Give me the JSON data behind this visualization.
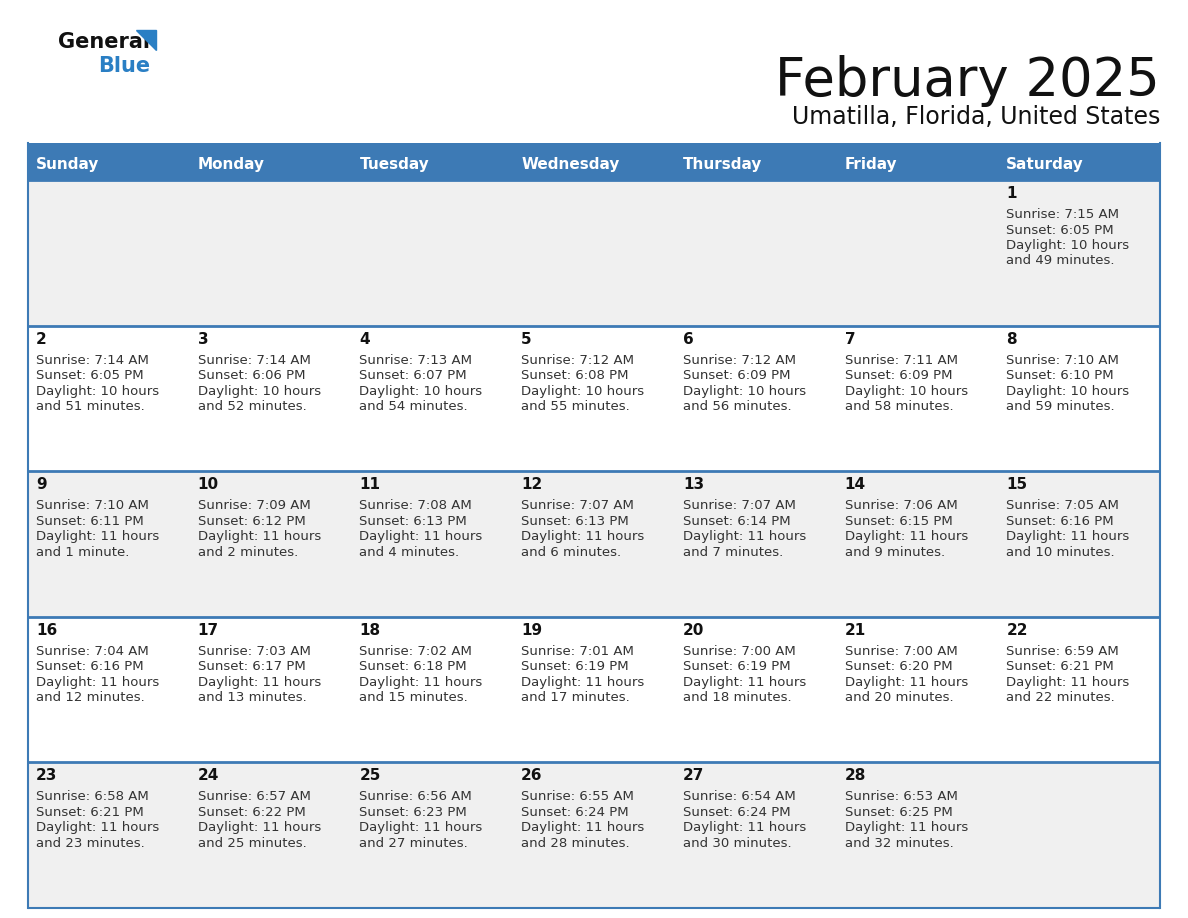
{
  "title": "February 2025",
  "subtitle": "Umatilla, Florida, United States",
  "header_bg_color": "#3d7ab5",
  "header_text_color": "#ffffff",
  "row_bg_color_a": "#f0f0f0",
  "row_bg_color_b": "#ffffff",
  "border_color": "#3d7ab5",
  "day_headers": [
    "Sunday",
    "Monday",
    "Tuesday",
    "Wednesday",
    "Thursday",
    "Friday",
    "Saturday"
  ],
  "title_color": "#111111",
  "subtitle_color": "#111111",
  "cell_text_color": "#333333",
  "day_num_color": "#111111",
  "logo_general_color": "#111111",
  "logo_blue_color": "#2a7fc4",
  "logo_triangle_color": "#2a7fc4",
  "weeks": [
    [
      {
        "day": null,
        "sunrise": null,
        "sunset": null,
        "daylight": null
      },
      {
        "day": null,
        "sunrise": null,
        "sunset": null,
        "daylight": null
      },
      {
        "day": null,
        "sunrise": null,
        "sunset": null,
        "daylight": null
      },
      {
        "day": null,
        "sunrise": null,
        "sunset": null,
        "daylight": null
      },
      {
        "day": null,
        "sunrise": null,
        "sunset": null,
        "daylight": null
      },
      {
        "day": null,
        "sunrise": null,
        "sunset": null,
        "daylight": null
      },
      {
        "day": 1,
        "sunrise": "7:15 AM",
        "sunset": "6:05 PM",
        "daylight": "10 hours and 49 minutes."
      }
    ],
    [
      {
        "day": 2,
        "sunrise": "7:14 AM",
        "sunset": "6:05 PM",
        "daylight": "10 hours and 51 minutes."
      },
      {
        "day": 3,
        "sunrise": "7:14 AM",
        "sunset": "6:06 PM",
        "daylight": "10 hours and 52 minutes."
      },
      {
        "day": 4,
        "sunrise": "7:13 AM",
        "sunset": "6:07 PM",
        "daylight": "10 hours and 54 minutes."
      },
      {
        "day": 5,
        "sunrise": "7:12 AM",
        "sunset": "6:08 PM",
        "daylight": "10 hours and 55 minutes."
      },
      {
        "day": 6,
        "sunrise": "7:12 AM",
        "sunset": "6:09 PM",
        "daylight": "10 hours and 56 minutes."
      },
      {
        "day": 7,
        "sunrise": "7:11 AM",
        "sunset": "6:09 PM",
        "daylight": "10 hours and 58 minutes."
      },
      {
        "day": 8,
        "sunrise": "7:10 AM",
        "sunset": "6:10 PM",
        "daylight": "10 hours and 59 minutes."
      }
    ],
    [
      {
        "day": 9,
        "sunrise": "7:10 AM",
        "sunset": "6:11 PM",
        "daylight": "11 hours and 1 minute."
      },
      {
        "day": 10,
        "sunrise": "7:09 AM",
        "sunset": "6:12 PM",
        "daylight": "11 hours and 2 minutes."
      },
      {
        "day": 11,
        "sunrise": "7:08 AM",
        "sunset": "6:13 PM",
        "daylight": "11 hours and 4 minutes."
      },
      {
        "day": 12,
        "sunrise": "7:07 AM",
        "sunset": "6:13 PM",
        "daylight": "11 hours and 6 minutes."
      },
      {
        "day": 13,
        "sunrise": "7:07 AM",
        "sunset": "6:14 PM",
        "daylight": "11 hours and 7 minutes."
      },
      {
        "day": 14,
        "sunrise": "7:06 AM",
        "sunset": "6:15 PM",
        "daylight": "11 hours and 9 minutes."
      },
      {
        "day": 15,
        "sunrise": "7:05 AM",
        "sunset": "6:16 PM",
        "daylight": "11 hours and 10 minutes."
      }
    ],
    [
      {
        "day": 16,
        "sunrise": "7:04 AM",
        "sunset": "6:16 PM",
        "daylight": "11 hours and 12 minutes."
      },
      {
        "day": 17,
        "sunrise": "7:03 AM",
        "sunset": "6:17 PM",
        "daylight": "11 hours and 13 minutes."
      },
      {
        "day": 18,
        "sunrise": "7:02 AM",
        "sunset": "6:18 PM",
        "daylight": "11 hours and 15 minutes."
      },
      {
        "day": 19,
        "sunrise": "7:01 AM",
        "sunset": "6:19 PM",
        "daylight": "11 hours and 17 minutes."
      },
      {
        "day": 20,
        "sunrise": "7:00 AM",
        "sunset": "6:19 PM",
        "daylight": "11 hours and 18 minutes."
      },
      {
        "day": 21,
        "sunrise": "7:00 AM",
        "sunset": "6:20 PM",
        "daylight": "11 hours and 20 minutes."
      },
      {
        "day": 22,
        "sunrise": "6:59 AM",
        "sunset": "6:21 PM",
        "daylight": "11 hours and 22 minutes."
      }
    ],
    [
      {
        "day": 23,
        "sunrise": "6:58 AM",
        "sunset": "6:21 PM",
        "daylight": "11 hours and 23 minutes."
      },
      {
        "day": 24,
        "sunrise": "6:57 AM",
        "sunset": "6:22 PM",
        "daylight": "11 hours and 25 minutes."
      },
      {
        "day": 25,
        "sunrise": "6:56 AM",
        "sunset": "6:23 PM",
        "daylight": "11 hours and 27 minutes."
      },
      {
        "day": 26,
        "sunrise": "6:55 AM",
        "sunset": "6:24 PM",
        "daylight": "11 hours and 28 minutes."
      },
      {
        "day": 27,
        "sunrise": "6:54 AM",
        "sunset": "6:24 PM",
        "daylight": "11 hours and 30 minutes."
      },
      {
        "day": 28,
        "sunrise": "6:53 AM",
        "sunset": "6:25 PM",
        "daylight": "11 hours and 32 minutes."
      },
      {
        "day": null,
        "sunrise": null,
        "sunset": null,
        "daylight": null
      }
    ]
  ]
}
